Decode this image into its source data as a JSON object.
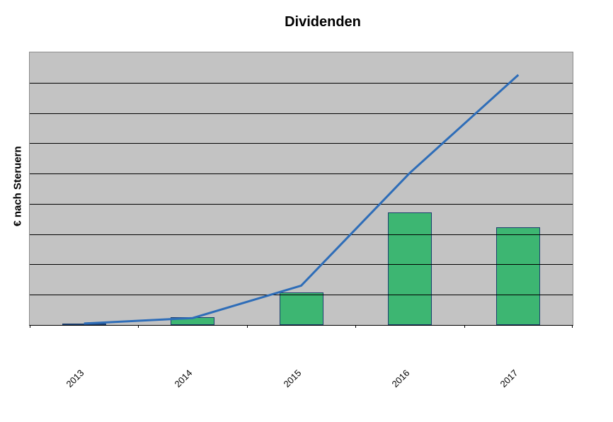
{
  "chart": {
    "title": "Dividenden",
    "y_axis_label": "€ nach Steruern",
    "legend": "none",
    "colors": {
      "page_bg": "#ffffff",
      "plot_bg": "#c3c3c3",
      "plot_border": "#8c8c8c",
      "axis": "#000000",
      "gridline": "#000000",
      "tick": "#000000",
      "bar_fill": "#3db672",
      "bar_border": "#1c3e6e",
      "line": "#2e6db8",
      "text": "#000000"
    }
  },
  "chart_data": {
    "type": "bar",
    "subtype": "bar+line combo",
    "title": "Dividenden",
    "xlabel": "",
    "ylabel": "€ nach Steruern",
    "categories": [
      "2013",
      "2014",
      "2015",
      "2016",
      "2017"
    ],
    "series": [
      {
        "name": "bars",
        "type": "bar",
        "values": [
          0.05,
          0.26,
          1.07,
          3.72,
          3.23
        ]
      },
      {
        "name": "line",
        "type": "line",
        "values": [
          0.05,
          0.23,
          1.3,
          5.02,
          8.26
        ]
      }
    ],
    "ylim": [
      0,
      9
    ],
    "gridline_interval": 1,
    "y_tick_labels_visible": false,
    "value_units": "gridline intervals (no numeric y-axis labels shown in image)",
    "grid": "horizontal gridlines drawn over bars",
    "legend_position": "none"
  }
}
